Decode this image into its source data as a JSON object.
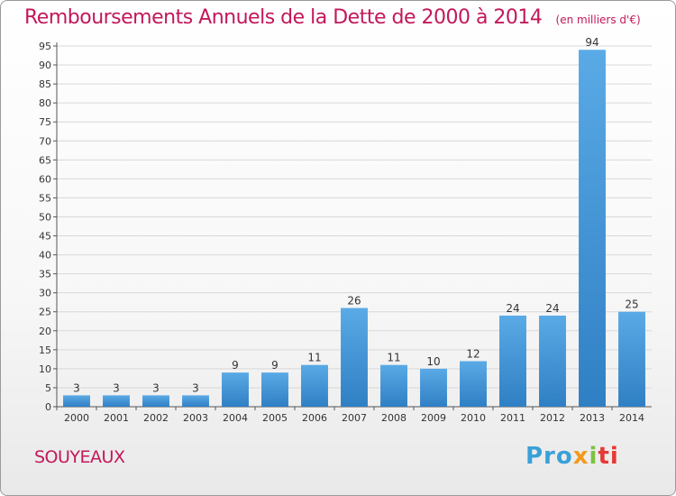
{
  "header": {
    "title": "Remboursements Annuels de la Dette de 2000 à 2014",
    "subtitle": "(en milliers d'€)"
  },
  "footer": {
    "place": "SOUYEAUX",
    "logo": [
      "Pro",
      "x",
      "i",
      "ti"
    ]
  },
  "colors": {
    "title": "#c2185b",
    "bar_light": "#5aaae6",
    "bar_dark": "#2f7fc4",
    "grid": "#d8d8d8",
    "logo": [
      "#3aa0d8",
      "#f29a1c",
      "#7cc242",
      "#e53935"
    ]
  },
  "chart_data": {
    "type": "bar",
    "title": "Remboursements Annuels de la Dette de 2000 à 2014",
    "subtitle": "(en milliers d'€)",
    "xlabel": "",
    "ylabel": "",
    "categories": [
      "2000",
      "2001",
      "2002",
      "2003",
      "2004",
      "2005",
      "2006",
      "2007",
      "2008",
      "2009",
      "2010",
      "2011",
      "2012",
      "2013",
      "2014"
    ],
    "values": [
      3,
      3,
      3,
      3,
      9,
      9,
      11,
      26,
      11,
      10,
      12,
      24,
      24,
      94,
      25
    ],
    "ylim": [
      0,
      95
    ],
    "ytick_step": 5,
    "grid": true,
    "legend": "none"
  }
}
